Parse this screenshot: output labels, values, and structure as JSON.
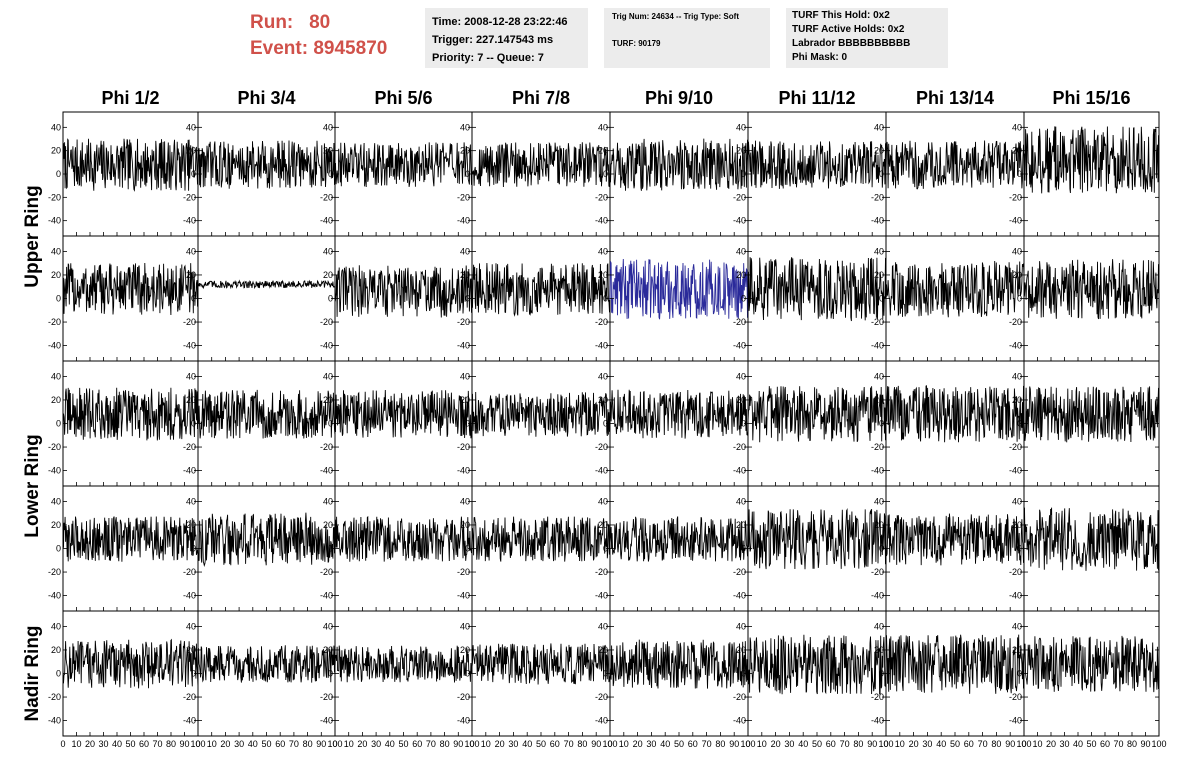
{
  "header": {
    "run_label": "Run:",
    "run_value": "80",
    "event_label": "Event:",
    "event_value": "8945870",
    "time": "Time: 2008-12-28 23:22:46",
    "trigger": "Trigger: 227.147543 ms",
    "priority": "Priority: 7 -- Queue: 7",
    "trig_num": "Trig Num: 24634 -- Trig Type: Soft",
    "turf": "TURF: 90179",
    "turf_this_hold": "TURF This Hold: 0x2",
    "turf_active_holds": "TURF Active Holds: 0x2",
    "labrador": "Labrador BBBBBBBBBB",
    "phi_mask": "Phi Mask: 0"
  },
  "colors": {
    "header_red": "#d0514a",
    "info_box_bg": "#ececec",
    "trace_default": "#000000",
    "trace_highlight": "#2a2a9a"
  },
  "chart_data": {
    "type": "line",
    "columns": [
      "Phi 1/2",
      "Phi 3/4",
      "Phi 5/6",
      "Phi 7/8",
      "Phi 9/10",
      "Phi 11/12",
      "Phi 13/14",
      "Phi 15/16"
    ],
    "rows": [
      "Upper Ring",
      "Upper Ring",
      "Lower Ring",
      "Lower Ring",
      "Nadir Ring"
    ],
    "row_labels": [
      {
        "text": "Upper Ring",
        "span": [
          0,
          1
        ]
      },
      {
        "text": "Lower Ring",
        "span": [
          2,
          3
        ]
      },
      {
        "text": "Nadir Ring",
        "span": [
          4,
          4
        ]
      }
    ],
    "xlim": [
      0,
      100
    ],
    "ylim": [
      -48,
      48
    ],
    "x_ticks": [
      0,
      10,
      20,
      30,
      40,
      50,
      60,
      70,
      80,
      90,
      100
    ],
    "x_tick_labels": [
      "0",
      "10",
      "20",
      "30",
      "40",
      "50",
      "60",
      "70",
      "80",
      "90",
      "100"
    ],
    "y_ticks": [
      -40,
      -20,
      0,
      20,
      40
    ],
    "y_tick_labels": [
      "-40",
      "-20",
      "0",
      "20",
      "40"
    ],
    "highlight_panel": {
      "row": 1,
      "col": 4,
      "color": "#2a2a9a"
    },
    "panel_stats": [
      [
        [
          8,
          14
        ],
        [
          8,
          13
        ],
        [
          8,
          12
        ],
        [
          8,
          12
        ],
        [
          8,
          14
        ],
        [
          8,
          13
        ],
        [
          8,
          13
        ],
        [
          12,
          18
        ]
      ],
      [
        [
          8,
          14
        ],
        [
          12,
          2
        ],
        [
          6,
          14
        ],
        [
          8,
          14
        ],
        [
          8,
          16
        ],
        [
          8,
          17
        ],
        [
          8,
          15
        ],
        [
          8,
          16
        ]
      ],
      [
        [
          8,
          14
        ],
        [
          8,
          13
        ],
        [
          8,
          13
        ],
        [
          8,
          12
        ],
        [
          8,
          13
        ],
        [
          8,
          15
        ],
        [
          8,
          15
        ],
        [
          8,
          15
        ]
      ],
      [
        [
          8,
          12
        ],
        [
          8,
          14
        ],
        [
          8,
          12
        ],
        [
          8,
          12
        ],
        [
          8,
          12
        ],
        [
          8,
          16
        ],
        [
          8,
          14
        ],
        [
          8,
          17
        ]
      ],
      [
        [
          8,
          13
        ],
        [
          8,
          10
        ],
        [
          8,
          10
        ],
        [
          8,
          11
        ],
        [
          8,
          13
        ],
        [
          8,
          16
        ],
        [
          8,
          16
        ],
        [
          8,
          15
        ]
      ]
    ]
  }
}
